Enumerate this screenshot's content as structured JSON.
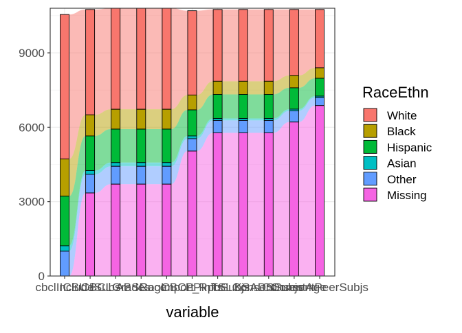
{
  "chart_data": {
    "type": "alluvial",
    "xlabel": "variable",
    "ylabel": "",
    "ylim": [
      0,
      10800
    ],
    "yticks": [
      0,
      3000,
      6000,
      9000
    ],
    "categories": [
      "cbclInclude",
      "ICBUdSubs",
      "CBCLGrades",
      "ABSRace",
      "CogImport",
      "CBCL_Rpts",
      "PPInfoSubjs",
      "TSLConsent",
      "KSADSSubjs",
      "ConsentAge",
      "ConsentPeerSubjs"
    ],
    "series": [
      {
        "name": "White",
        "color": "#F8766D",
        "values": [
          5828,
          4250,
          4075,
          4075,
          4075,
          3400,
          2895,
          2895,
          2895,
          2660,
          2355
        ]
      },
      {
        "name": "Black",
        "color": "#B79F00",
        "values": [
          1500,
          850,
          800,
          800,
          800,
          600,
          530,
          530,
          530,
          500,
          420
        ]
      },
      {
        "name": "Hispanic",
        "color": "#00BA38",
        "values": [
          2000,
          1400,
          1350,
          1350,
          1350,
          1050,
          970,
          970,
          970,
          860,
          720
        ]
      },
      {
        "name": "Asian",
        "color": "#00BFC4",
        "values": [
          220,
          150,
          150,
          150,
          150,
          110,
          80,
          80,
          80,
          70,
          60
        ]
      },
      {
        "name": "Other",
        "color": "#619CFF",
        "values": [
          1000,
          750,
          720,
          720,
          720,
          500,
          500,
          500,
          500,
          450,
          320
        ]
      },
      {
        "name": "Missing",
        "color": "#F564E3",
        "values": [
          0,
          3350,
          3705,
          3705,
          3705,
          5040,
          5775,
          5775,
          5775,
          6210,
          6875
        ]
      }
    ],
    "legend": {
      "title": "RaceEthn",
      "position": "right"
    },
    "grid": true
  }
}
